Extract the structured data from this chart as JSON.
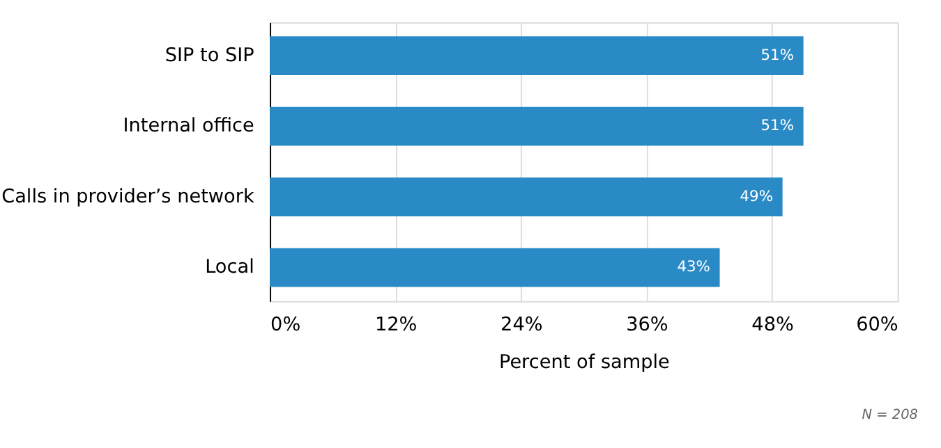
{
  "chart_data": {
    "type": "bar",
    "orientation": "horizontal",
    "categories": [
      "SIP to SIP",
      "Internal office",
      "Calls in provider’s network",
      "Local"
    ],
    "values": [
      51,
      51,
      49,
      43
    ],
    "value_labels": [
      "51%",
      "51%",
      "49%",
      "43%"
    ],
    "color": "#2a8ac6",
    "xlabel": "Percent of sample",
    "xlim": [
      0,
      60
    ],
    "xticks": [
      {
        "value": 0,
        "label": "0%"
      },
      {
        "value": 12,
        "label": "12%"
      },
      {
        "value": 24,
        "label": "24%"
      },
      {
        "value": 36,
        "label": "36%"
      },
      {
        "value": 48,
        "label": "48%"
      },
      {
        "value": 60,
        "label": "60%"
      }
    ],
    "grid": "x",
    "annotations": [
      "N = 208"
    ]
  }
}
